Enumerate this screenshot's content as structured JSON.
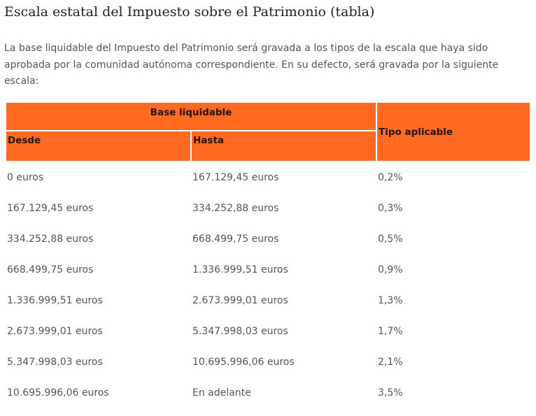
{
  "title": "Escala estatal del Impuesto sobre el Patrimonio (tabla)",
  "intro": "La base liquidable del Impuesto del Patrimonio será gravada a los tipos de la escala que haya sido aprobada por la comunidad autónoma correspondiente. En su defecto, será gravada por la siguiente escala:",
  "table": {
    "header_group": "Base liquidable",
    "col_desde": "Desde",
    "col_hasta": "Hasta",
    "col_tipo": "Tipo aplicable",
    "rows": [
      {
        "desde": "0 euros",
        "hasta": "167.129,45 euros",
        "tipo": "0,2%"
      },
      {
        "desde": "167.129,45 euros",
        "hasta": "334.252,88 euros",
        "tipo": "0,3%"
      },
      {
        "desde": "334.252,88 euros",
        "hasta": "668.499,75 euros",
        "tipo": "0,5%"
      },
      {
        "desde": "668.499,75 euros",
        "hasta": "1.336.999,51 euros",
        "tipo": "0,9%"
      },
      {
        "desde": "1.336.999,51 euros",
        "hasta": "2.673.999,01 euros",
        "tipo": "1,3%"
      },
      {
        "desde": "2.673.999,01 euros",
        "hasta": "5.347.998,03 euros",
        "tipo": "1,7%"
      },
      {
        "desde": "5.347.998,03 euros",
        "hasta": "10.695.996,06 euros",
        "tipo": "2,1%"
      },
      {
        "desde": "10.695.996,06 euros",
        "hasta": "En adelante",
        "tipo": "3,5%"
      }
    ]
  },
  "colors": {
    "header_bg": "#ff6a23",
    "header_text": "#2a1408",
    "body_text": "#555555",
    "title_text": "#222222"
  }
}
